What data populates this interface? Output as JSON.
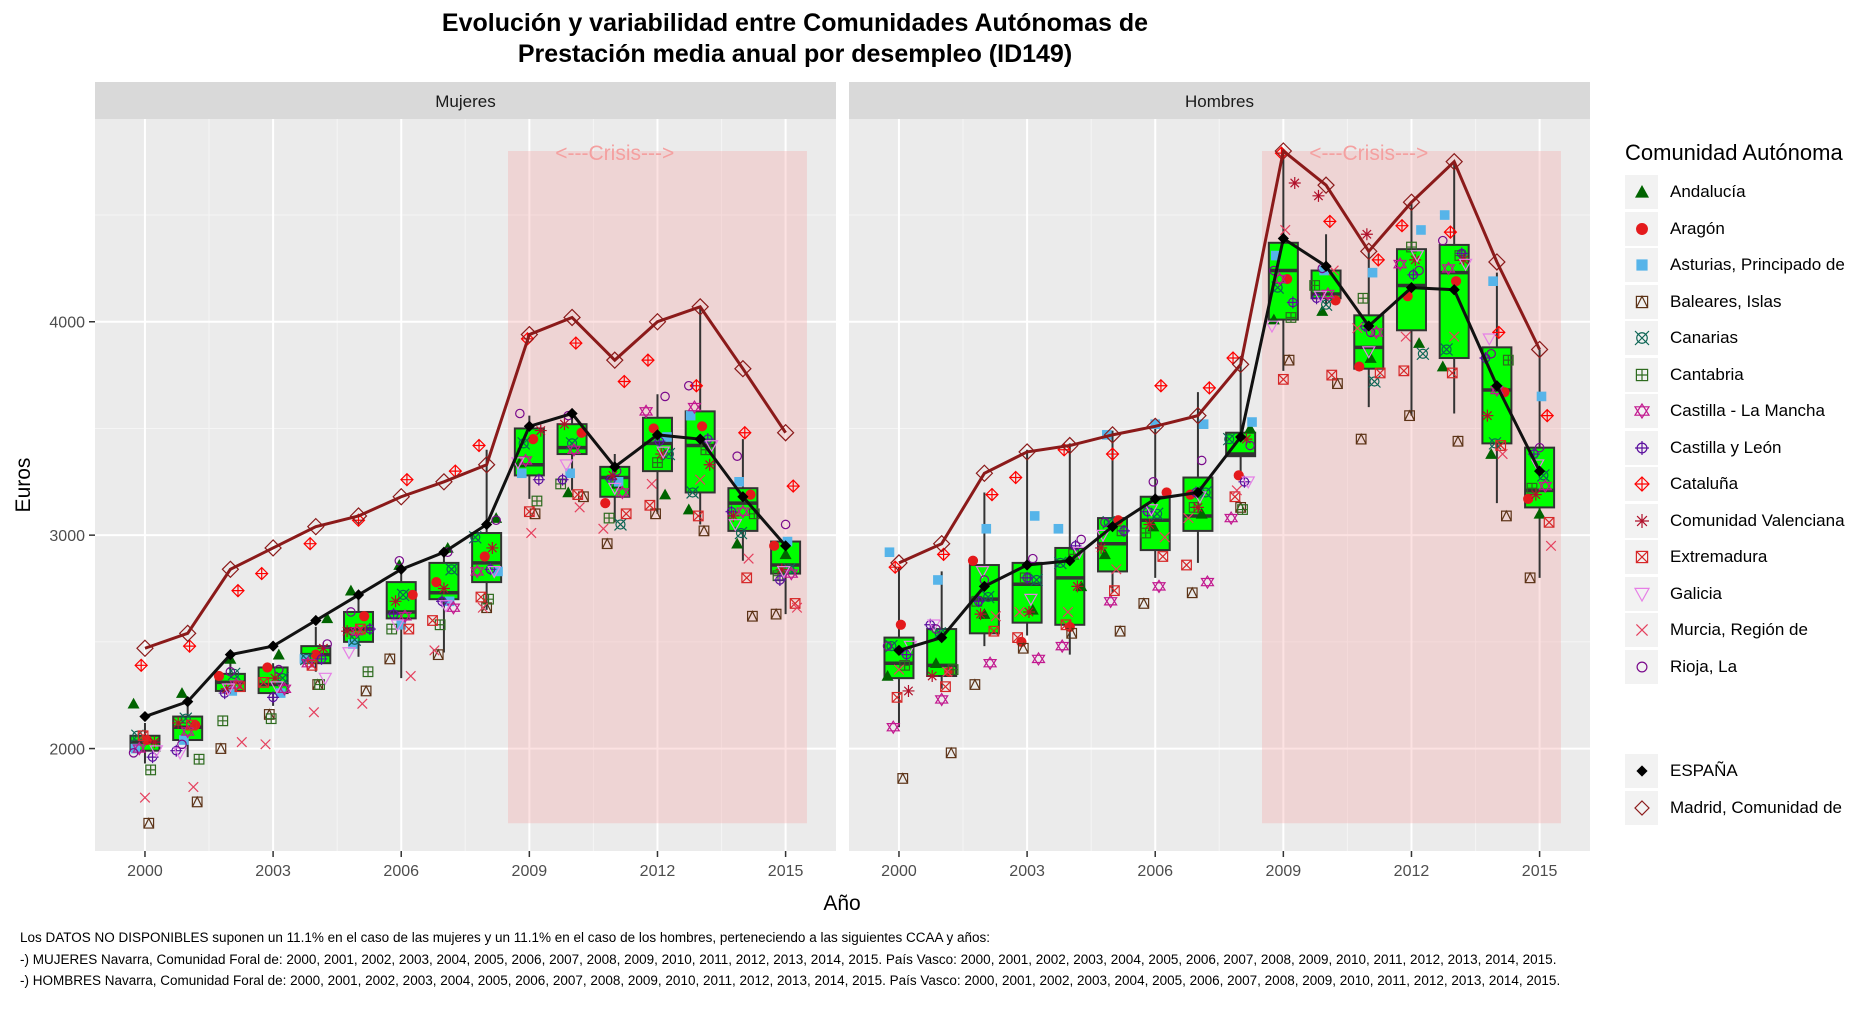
{
  "title_line1": "Evolución y variabilidad entre Comunidades Autónomas de",
  "title_line2": "Prestación media anual por desempleo (ID149)",
  "chart_data": {
    "type": "boxplot-faceted",
    "title": "Evolución y variabilidad entre Comunidades Autónomas de Prestación media anual por desempleo (ID149)",
    "xlabel": "Año",
    "ylabel": "Euros",
    "ylim": [
      1520,
      4950
    ],
    "yticks": [
      2000,
      3000,
      4000
    ],
    "xticks": [
      2000,
      2003,
      2006,
      2009,
      2012,
      2015
    ],
    "years": [
      2000,
      2001,
      2002,
      2003,
      2004,
      2005,
      2006,
      2007,
      2008,
      2009,
      2010,
      2011,
      2012,
      2013,
      2014,
      2015
    ],
    "crisis": {
      "label": "<---Crisis--->",
      "from": 2008.5,
      "to": 2015.5,
      "ymin": 1650,
      "ymax": 4800,
      "color": "#f4a0a0"
    },
    "legend_title": "Comunidad Autónoma",
    "legend_position": "right",
    "legend": [
      {
        "name": "Andalucía",
        "symbol": "triangle-filled",
        "color": "#006400"
      },
      {
        "name": "Aragón",
        "symbol": "circle-filled",
        "color": "#e41a1c"
      },
      {
        "name": "Asturias, Principado de",
        "symbol": "square-filled",
        "color": "#56b4e9"
      },
      {
        "name": "Baleares, Islas",
        "symbol": "square-triangle",
        "color": "#5c3317"
      },
      {
        "name": "Canarias",
        "symbol": "circle-cross-x",
        "color": "#0e6655"
      },
      {
        "name": "Cantabria",
        "symbol": "square-plus",
        "color": "#2e6b1f"
      },
      {
        "name": "Castilla - La Mancha",
        "symbol": "star-of-david",
        "color": "#c2188f"
      },
      {
        "name": "Castilla y León",
        "symbol": "circle-plus",
        "color": "#5b0f9e"
      },
      {
        "name": "Cataluña",
        "symbol": "diamond-plus",
        "color": "#ff0000"
      },
      {
        "name": "Comunidad Valenciana",
        "symbol": "asterisk",
        "color": "#b0102a"
      },
      {
        "name": "Extremadura",
        "symbol": "square-x",
        "color": "#d62728"
      },
      {
        "name": "Galicia",
        "symbol": "triangle-down-open",
        "color": "#e67fe6"
      },
      {
        "name": "Murcia, Región de",
        "symbol": "x",
        "color": "#e5405e"
      },
      {
        "name": "Rioja, La",
        "symbol": "circle-open",
        "color": "#7a0a8c"
      }
    ],
    "legend_lines": [
      {
        "name": "ESPAÑA",
        "symbol": "diamond-filled",
        "color": "#000000"
      },
      {
        "name": "Madrid, Comunidad de",
        "symbol": "diamond-open",
        "color": "#8b1a1a"
      }
    ],
    "panels": [
      {
        "name": "Mujeres",
        "boxes": [
          [
            1930,
            1990,
            2030,
            2060,
            2120
          ],
          [
            1960,
            2040,
            2100,
            2150,
            2230
          ],
          [
            2260,
            2270,
            2310,
            2350,
            2400
          ],
          [
            2200,
            2260,
            2300,
            2380,
            2400
          ],
          [
            2360,
            2400,
            2440,
            2480,
            2570
          ],
          [
            2430,
            2500,
            2560,
            2640,
            2720
          ],
          [
            2330,
            2610,
            2640,
            2780,
            2850
          ],
          [
            2450,
            2700,
            2730,
            2870,
            2900
          ],
          [
            2650,
            2780,
            2870,
            3010,
            3400
          ],
          [
            3170,
            3280,
            3330,
            3500,
            3560
          ],
          [
            3210,
            3380,
            3410,
            3520,
            3560
          ],
          [
            3060,
            3180,
            3270,
            3320,
            3380
          ],
          [
            3100,
            3300,
            3430,
            3550,
            3660
          ],
          [
            3050,
            3200,
            3420,
            3580,
            4070
          ],
          [
            2880,
            3020,
            3150,
            3220,
            3450
          ],
          [
            2630,
            2820,
            2860,
            2970,
            2970
          ]
        ],
        "espana": [
          2150,
          2220,
          2440,
          2480,
          2600,
          2720,
          2840,
          2920,
          3050,
          3510,
          3570,
          3320,
          3470,
          3450,
          3180,
          2950
        ],
        "madrid": [
          2470,
          2540,
          2840,
          2940,
          3040,
          3090,
          3180,
          3250,
          3330,
          3940,
          4020,
          3820,
          4000,
          4070,
          3780,
          3480
        ],
        "points": {
          "Andalucía": [
            2210,
            2260,
            2420,
            2440,
            2610,
            2740,
            2860,
            2940,
            3080,
            3340,
            3200,
            3240,
            3190,
            3120,
            2960,
            2910
          ],
          "Aragón": [
            2040,
            2110,
            2340,
            2380,
            2440,
            2620,
            2720,
            2780,
            2900,
            3450,
            3480,
            3150,
            3500,
            3510,
            3190,
            2950
          ],
          "Asturias, Principado de": [
            2000,
            2040,
            2270,
            2260,
            2420,
            2490,
            2580,
            2690,
            2830,
            3290,
            3290,
            3250,
            3460,
            3560,
            3250,
            2970
          ],
          "Baleares, Islas": [
            1650,
            1750,
            2000,
            2160,
            2300,
            2270,
            2420,
            2440,
            2660,
            3100,
            3180,
            2960,
            3100,
            3020,
            2620,
            2630
          ],
          "Canarias": [
            2060,
            2140,
            2350,
            2330,
            2420,
            2510,
            2720,
            2840,
            2990,
            3430,
            3430,
            3050,
            3380,
            3200,
            3010,
            2840
          ],
          "Cantabria": [
            1900,
            1950,
            2130,
            2140,
            2300,
            2360,
            2560,
            2580,
            2700,
            3160,
            3240,
            3080,
            3340,
            3400,
            3100,
            2810
          ],
          "Castilla - La Mancha": [
            2000,
            2080,
            2300,
            2280,
            2400,
            2550,
            2620,
            2660,
            2830,
            3350,
            3400,
            3200,
            3580,
            3600,
            3110,
            2820
          ],
          "Castilla y León": [
            1960,
            1990,
            2260,
            2240,
            2420,
            2560,
            2630,
            2690,
            2840,
            3260,
            3260,
            3260,
            3440,
            3450,
            3110,
            2790
          ],
          "Cataluña": [
            2390,
            2480,
            2740,
            2820,
            2960,
            3070,
            3260,
            3300,
            3420,
            3920,
            3900,
            3720,
            3820,
            3700,
            3480,
            3230
          ],
          "Comunidad Valenciana": [
            2030,
            2120,
            2280,
            2330,
            2470,
            2550,
            2690,
            2750,
            2940,
            3490,
            3520,
            3280,
            3380,
            3330,
            3090,
            2840
          ],
          "Extremadura": [
            2060,
            2110,
            2290,
            2310,
            2390,
            2560,
            2560,
            2600,
            2710,
            3110,
            3190,
            3100,
            3140,
            3090,
            2800,
            2680
          ],
          "Galicia": [
            1990,
            1980,
            2280,
            2290,
            2330,
            2450,
            2580,
            2670,
            2830,
            3340,
            3330,
            3220,
            3390,
            3420,
            3050,
            2830
          ],
          "Murcia, Región de": [
            1770,
            1820,
            2030,
            2020,
            2170,
            2210,
            2340,
            2460,
            2660,
            3010,
            3130,
            3030,
            3240,
            3260,
            2890,
            2660
          ],
          "Rioja, La": [
            1980,
            2020,
            2360,
            2370,
            2490,
            2640,
            2880,
            2920,
            3070,
            3570,
            3560,
            3300,
            3650,
            3700,
            3370,
            3050
          ]
        }
      },
      {
        "name": "Hombres",
        "boxes": [
          [
            2100,
            2330,
            2400,
            2520,
            2850
          ],
          [
            2280,
            2340,
            2390,
            2560,
            2830
          ],
          [
            2480,
            2540,
            2700,
            2860,
            3200
          ],
          [
            2530,
            2590,
            2770,
            2870,
            3400
          ],
          [
            2440,
            2580,
            2800,
            2940,
            3430
          ],
          [
            2730,
            2830,
            2960,
            3080,
            3490
          ],
          [
            2800,
            2930,
            3070,
            3180,
            3500
          ],
          [
            2870,
            3020,
            3090,
            3270,
            3670
          ],
          [
            3260,
            3370,
            3380,
            3480,
            3830
          ],
          [
            3770,
            4010,
            4240,
            4370,
            4800
          ],
          [
            4080,
            4110,
            4130,
            4240,
            4410
          ],
          [
            3600,
            3780,
            3880,
            4030,
            4330
          ],
          [
            3560,
            3960,
            4170,
            4340,
            4560
          ],
          [
            3570,
            3830,
            4230,
            4360,
            4750
          ],
          [
            3150,
            3430,
            3680,
            3880,
            4230
          ],
          [
            2800,
            3130,
            3210,
            3410,
            3870
          ]
        ],
        "espana": [
          2460,
          2520,
          2760,
          2860,
          2880,
          3040,
          3170,
          3200,
          3460,
          4390,
          4260,
          3980,
          4160,
          4150,
          3700,
          3300
        ],
        "madrid": [
          2870,
          2960,
          3290,
          3390,
          3420,
          3470,
          3510,
          3560,
          3800,
          4800,
          4640,
          4330,
          4560,
          4750,
          4280,
          3870
        ],
        "points": {
          "Andalucía": [
            2340,
            2400,
            2630,
            2650,
            2760,
            2910,
            3040,
            3100,
            3500,
            4010,
            4050,
            3830,
            3900,
            3790,
            3380,
            3100
          ],
          "Aragón": [
            2580,
            2360,
            2880,
            2500,
            2570,
            3070,
            3200,
            3190,
            3280,
            4200,
            4100,
            3790,
            4120,
            4190,
            3670,
            3170
          ],
          "Asturias, Principado de": [
            2920,
            2790,
            3030,
            3090,
            3030,
            3470,
            3520,
            3520,
            3530,
            4310,
            4240,
            4230,
            4430,
            4500,
            4190,
            3650
          ],
          "Baleares, Islas": [
            1860,
            1980,
            2300,
            2470,
            2540,
            2550,
            2680,
            2730,
            3130,
            3820,
            3710,
            3450,
            3560,
            3440,
            3090,
            2800
          ],
          "Canarias": [
            2480,
            2540,
            2710,
            2790,
            2870,
            3060,
            3100,
            3200,
            3450,
            4160,
            4080,
            3720,
            3850,
            3870,
            3430,
            3280
          ],
          "Cantabria": [
            2390,
            2370,
            2690,
            2800,
            2910,
            3020,
            3010,
            3130,
            3120,
            4020,
            4170,
            4110,
            4350,
            4310,
            3820,
            3220
          ],
          "Castilla - La Mancha": [
            2100,
            2230,
            2400,
            2420,
            2480,
            2690,
            2760,
            2780,
            3080,
            4200,
            4130,
            3950,
            4270,
            4250,
            3680,
            3230
          ],
          "Castilla y León": [
            2440,
            2580,
            2690,
            2800,
            2950,
            3020,
            3110,
            3200,
            3250,
            4090,
            4110,
            3980,
            4220,
            4320,
            3830,
            3380
          ],
          "Cataluña": [
            2850,
            2910,
            3190,
            3270,
            3400,
            3380,
            3700,
            3690,
            3830,
            4790,
            4470,
            4290,
            4450,
            4420,
            3950,
            3560
          ],
          "Comunidad Valenciana": [
            2270,
            2340,
            2630,
            2640,
            2760,
            2940,
            3050,
            3130,
            3450,
            4650,
            4590,
            4410,
            4290,
            4290,
            3560,
            3190
          ],
          "Extremadura": [
            2240,
            2290,
            2550,
            2520,
            2580,
            2740,
            2900,
            2860,
            3180,
            3730,
            3750,
            3760,
            3770,
            3760,
            3420,
            3060
          ],
          "Galicia": [
            2480,
            2580,
            2830,
            2700,
            2920,
            3000,
            3120,
            3180,
            3250,
            3980,
            4120,
            3860,
            4310,
            4270,
            3920,
            3330
          ],
          "Murcia, Región de": [
            2370,
            2360,
            2620,
            2640,
            2640,
            2840,
            2990,
            3080,
            3210,
            4430,
            4240,
            3970,
            3930,
            3930,
            3380,
            2950
          ],
          "Rioja, La": [
            2480,
            2560,
            2790,
            2890,
            2980,
            3060,
            3250,
            3350,
            3420,
            4240,
            4250,
            3950,
            4240,
            4380,
            3850,
            3410
          ]
        }
      }
    ]
  },
  "footer": {
    "line1": "Los DATOS NO DISPONIBLES suponen un 11.1% en el caso de las mujeres y un 11.1% en el caso de los hombres, perteneciendo a las siguientes CCAA y años:",
    "line2": "-) MUJERES Navarra, Comunidad Foral de: 2000, 2001, 2002, 2003, 2004, 2005, 2006, 2007, 2008, 2009, 2010, 2011, 2012, 2013, 2014, 2015. País Vasco: 2000, 2001, 2002, 2003, 2004, 2005, 2006, 2007, 2008, 2009, 2010, 2011, 2012, 2013, 2014, 2015.",
    "line3": "-) HOMBRES Navarra, Comunidad Foral de: 2000, 2001, 2002, 2003, 2004, 2005, 2006, 2007, 2008, 2009, 2010, 2011, 2012, 2013, 2014, 2015. País Vasco: 2000, 2001, 2002, 2003, 2004, 2005, 2006, 2007, 2008, 2009, 2010, 2011, 2012, 2013, 2014, 2015."
  }
}
